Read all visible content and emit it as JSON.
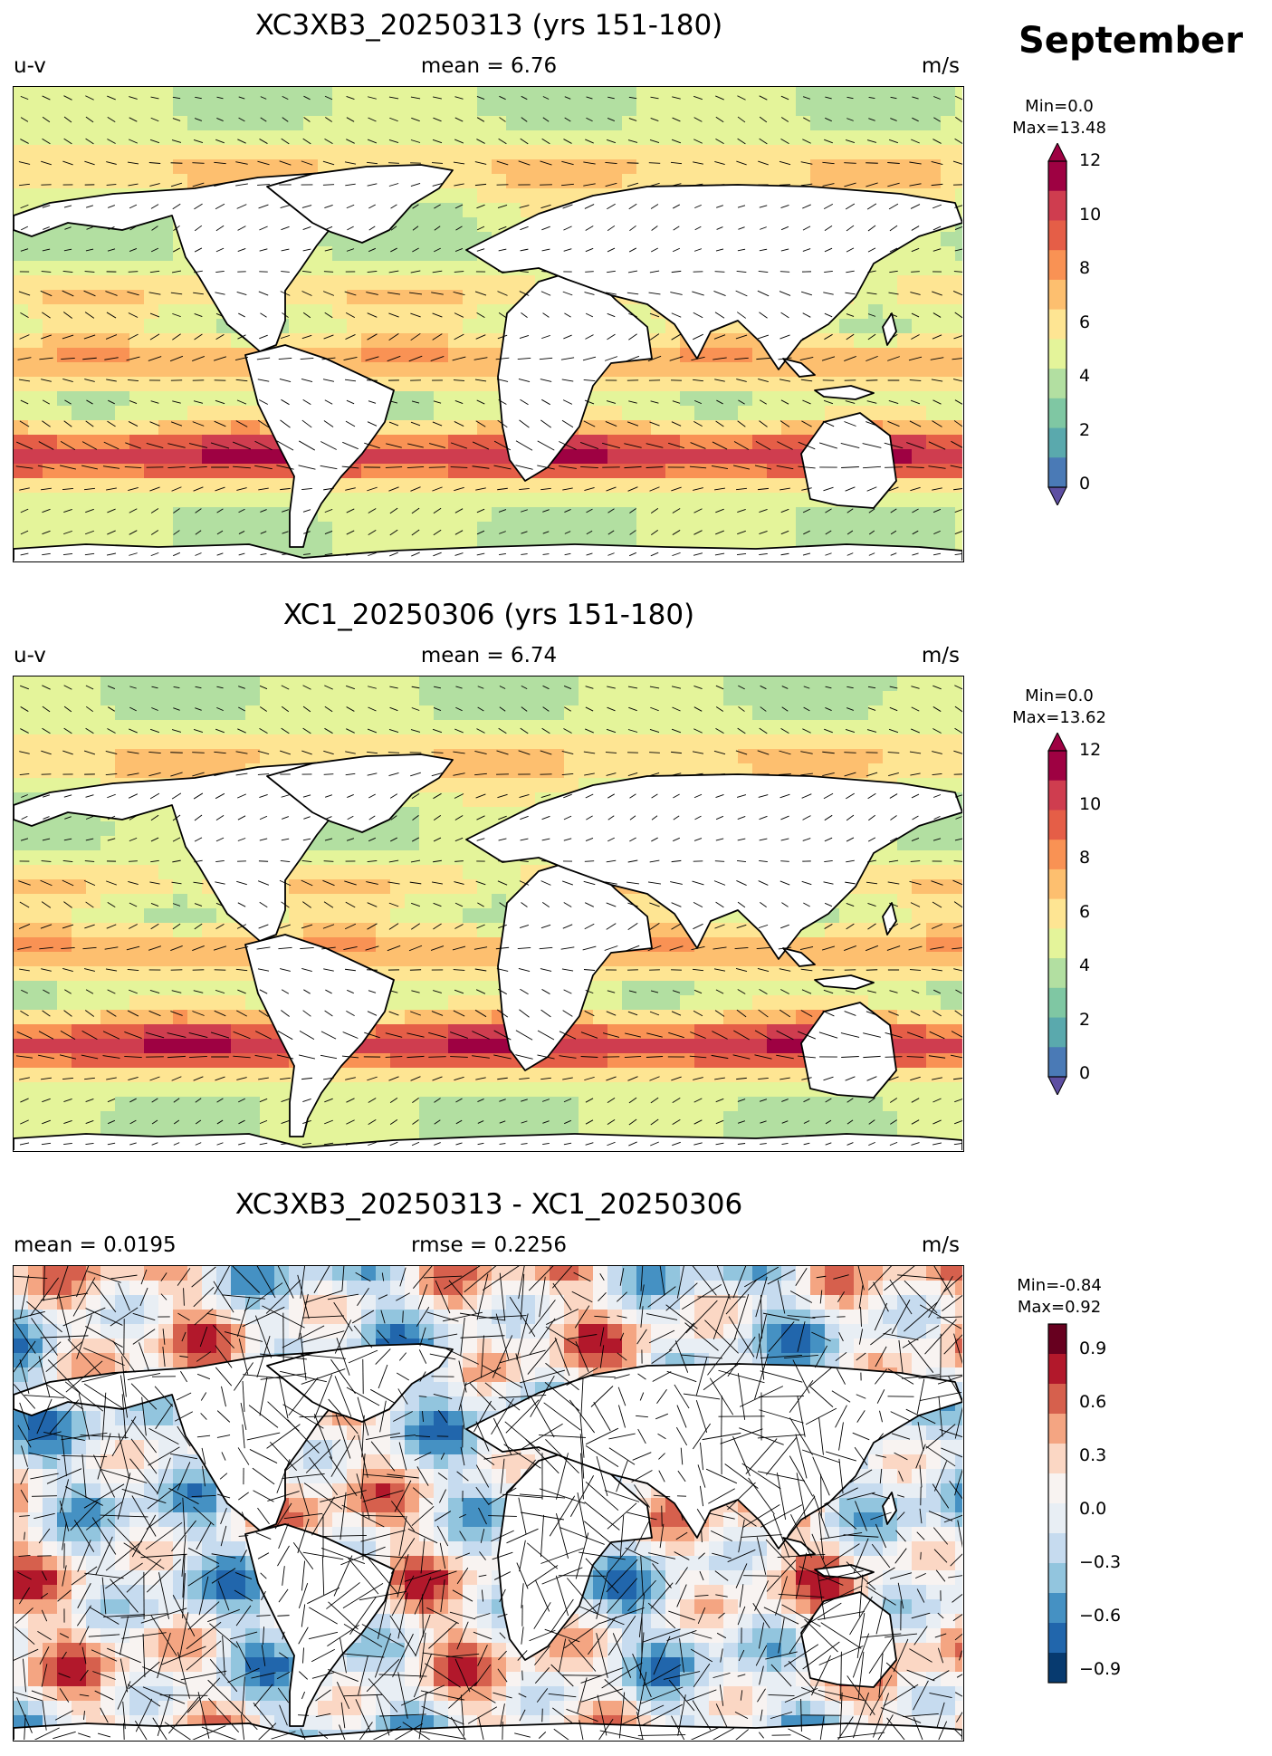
{
  "month": "September",
  "panels": [
    {
      "title": "XC3XB3_20250313 (yrs 151-180)",
      "left_label": "u-v",
      "center_label": "mean = 6.76",
      "right_label": "m/s",
      "colorbar": {
        "min_text": "Min=0.0",
        "max_text": "Max=13.48",
        "ticks": [
          "12",
          "10",
          "8",
          "6",
          "4",
          "2",
          "0"
        ]
      }
    },
    {
      "title": "XC1_20250306 (yrs 151-180)",
      "left_label": "u-v",
      "center_label": "mean = 6.74",
      "right_label": "m/s",
      "colorbar": {
        "min_text": "Min=0.0",
        "max_text": "Max=13.62",
        "ticks": [
          "12",
          "10",
          "8",
          "6",
          "4",
          "2",
          "0"
        ]
      }
    },
    {
      "title": "XC3XB3_20250313 - XC1_20250306",
      "left_label": "mean = 0.0195",
      "center_label": "rmse = 0.2256",
      "right_label": "m/s",
      "colorbar": {
        "min_text": "Min=-0.84",
        "max_text": "Max=0.92",
        "ticks": [
          "0.9",
          "0.6",
          "0.3",
          "0.0",
          "−0.3",
          "−0.6",
          "−0.9"
        ]
      }
    }
  ],
  "colors": {
    "speed_scale": [
      "#4a7ab6",
      "#5aa9ad",
      "#7fc7a3",
      "#b2dfa1",
      "#e4f49a",
      "#fee593",
      "#fdbf6f",
      "#f99254",
      "#e55e47",
      "#cf3d4f",
      "#9e0142"
    ],
    "diff_scale": [
      "#073a6f",
      "#2166ac",
      "#4591c3",
      "#92c5de",
      "#c6dbef",
      "#e8eef4",
      "#f8f3f1",
      "#fbd7c4",
      "#f4a582",
      "#d6604d",
      "#b2182b",
      "#67001f"
    ],
    "land": "#ffffff",
    "coast": "#000000"
  }
}
